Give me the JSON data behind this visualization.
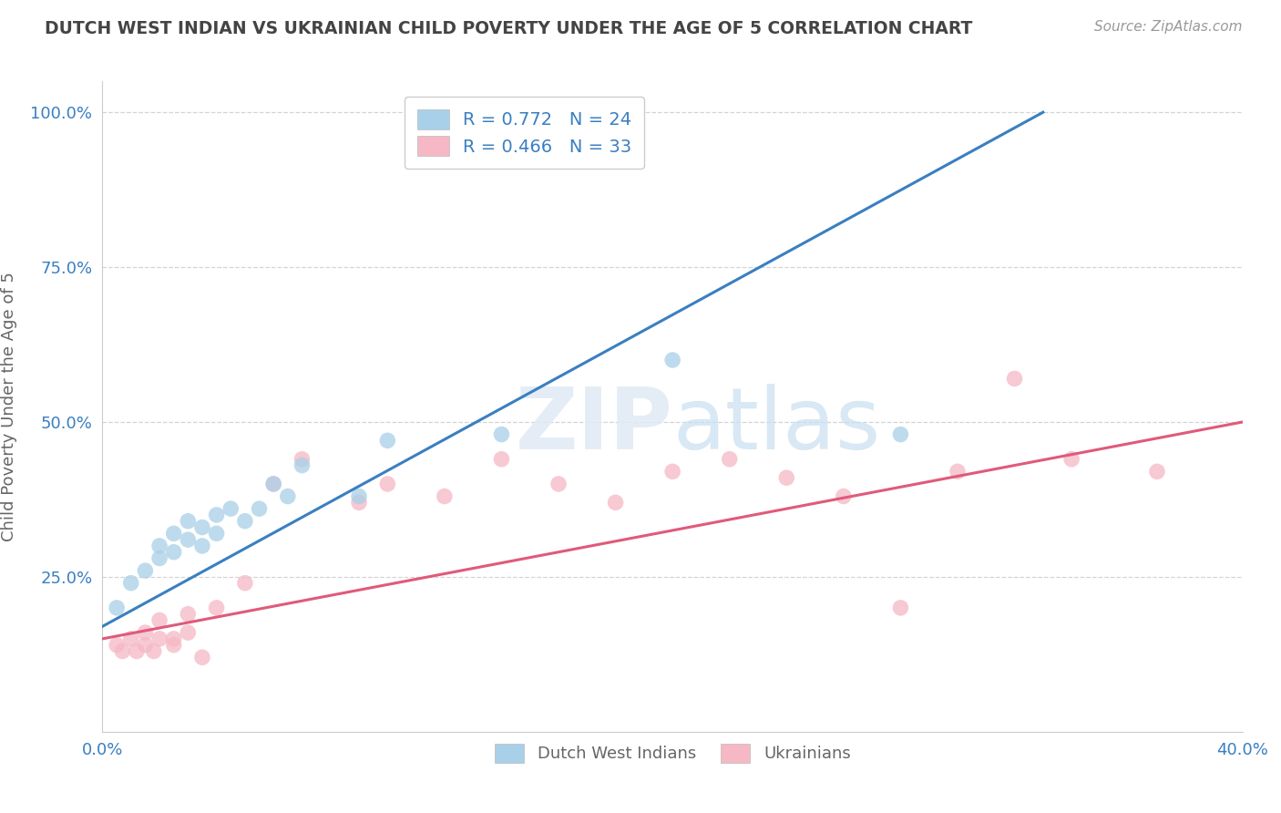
{
  "title": "DUTCH WEST INDIAN VS UKRAINIAN CHILD POVERTY UNDER THE AGE OF 5 CORRELATION CHART",
  "source": "Source: ZipAtlas.com",
  "ylabel": "Child Poverty Under the Age of 5",
  "xlim": [
    0.0,
    0.4
  ],
  "ylim": [
    0.0,
    1.05
  ],
  "xticks": [
    0.0,
    0.4
  ],
  "xticklabels": [
    "0.0%",
    "40.0%"
  ],
  "yticks": [
    0.25,
    0.5,
    0.75,
    1.0
  ],
  "yticklabels": [
    "25.0%",
    "50.0%",
    "75.0%",
    "100.0%"
  ],
  "background_color": "#ffffff",
  "plot_bg_color": "#ffffff",
  "grid_color": "#d0d0d0",
  "blue_x": [
    0.005,
    0.01,
    0.015,
    0.02,
    0.02,
    0.025,
    0.025,
    0.03,
    0.03,
    0.035,
    0.035,
    0.04,
    0.04,
    0.045,
    0.05,
    0.055,
    0.06,
    0.065,
    0.07,
    0.09,
    0.1,
    0.14,
    0.2,
    0.28
  ],
  "blue_y": [
    0.2,
    0.24,
    0.26,
    0.28,
    0.3,
    0.29,
    0.32,
    0.31,
    0.34,
    0.3,
    0.33,
    0.35,
    0.32,
    0.36,
    0.34,
    0.36,
    0.4,
    0.38,
    0.43,
    0.38,
    0.47,
    0.48,
    0.6,
    0.48
  ],
  "pink_x": [
    0.005,
    0.007,
    0.01,
    0.012,
    0.015,
    0.015,
    0.018,
    0.02,
    0.02,
    0.025,
    0.025,
    0.03,
    0.03,
    0.035,
    0.04,
    0.05,
    0.06,
    0.07,
    0.09,
    0.1,
    0.12,
    0.14,
    0.16,
    0.18,
    0.2,
    0.22,
    0.24,
    0.26,
    0.28,
    0.3,
    0.32,
    0.34,
    0.37
  ],
  "pink_y": [
    0.14,
    0.13,
    0.15,
    0.13,
    0.16,
    0.14,
    0.13,
    0.15,
    0.18,
    0.15,
    0.14,
    0.16,
    0.19,
    0.12,
    0.2,
    0.24,
    0.4,
    0.44,
    0.37,
    0.4,
    0.38,
    0.44,
    0.4,
    0.37,
    0.42,
    0.44,
    0.41,
    0.38,
    0.2,
    0.42,
    0.57,
    0.44,
    0.42
  ],
  "blue_line_x0": 0.0,
  "blue_line_y0": 0.17,
  "blue_line_x1": 0.33,
  "blue_line_y1": 1.0,
  "pink_line_x0": 0.0,
  "pink_line_y0": 0.15,
  "pink_line_x1": 0.4,
  "pink_line_y1": 0.5,
  "blue_R": 0.772,
  "blue_N": 24,
  "pink_R": 0.466,
  "pink_N": 33,
  "blue_color": "#a8d0e8",
  "blue_line_color": "#3a7fc1",
  "pink_color": "#f5b8c4",
  "pink_line_color": "#e05a7a",
  "legend_text_color": "#3a7fc1",
  "title_color": "#444444",
  "axis_label_color": "#666666",
  "tick_color": "#3a7fc1",
  "source_color": "#999999"
}
